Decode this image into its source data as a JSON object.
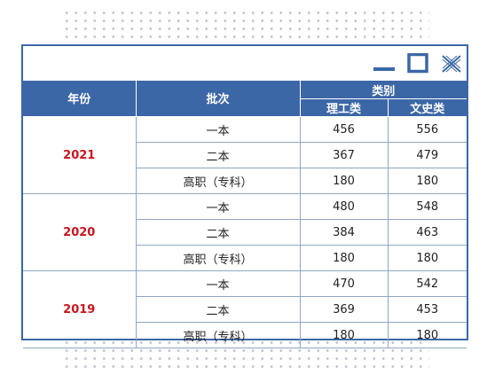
{
  "window": {
    "controls": [
      {
        "icon": "minimize-icon"
      },
      {
        "icon": "maximize-icon"
      },
      {
        "icon": "close-icon"
      }
    ]
  },
  "colors": {
    "header_bg": "#3c67a6",
    "year_text": "#c8161d",
    "border": "#8fa6c8"
  },
  "table": {
    "header": {
      "year": "年份",
      "batch": "批次",
      "category": "类别",
      "science": "理工类",
      "arts": "文史类"
    },
    "groups": [
      {
        "year": "2021",
        "rows": [
          {
            "batch": "一本",
            "science": "456",
            "arts": "556"
          },
          {
            "batch": "二本",
            "science": "367",
            "arts": "479"
          },
          {
            "batch": "高职（专科）",
            "science": "180",
            "arts": "180"
          }
        ]
      },
      {
        "year": "2020",
        "rows": [
          {
            "batch": "一本",
            "science": "480",
            "arts": "548"
          },
          {
            "batch": "二本",
            "science": "384",
            "arts": "463"
          },
          {
            "batch": "高职（专科）",
            "science": "180",
            "arts": "180"
          }
        ]
      },
      {
        "year": "2019",
        "rows": [
          {
            "batch": "一本",
            "science": "470",
            "arts": "542"
          },
          {
            "batch": "二本",
            "science": "369",
            "arts": "453"
          },
          {
            "batch": "高职（专科）",
            "science": "180",
            "arts": "180"
          }
        ]
      }
    ]
  }
}
